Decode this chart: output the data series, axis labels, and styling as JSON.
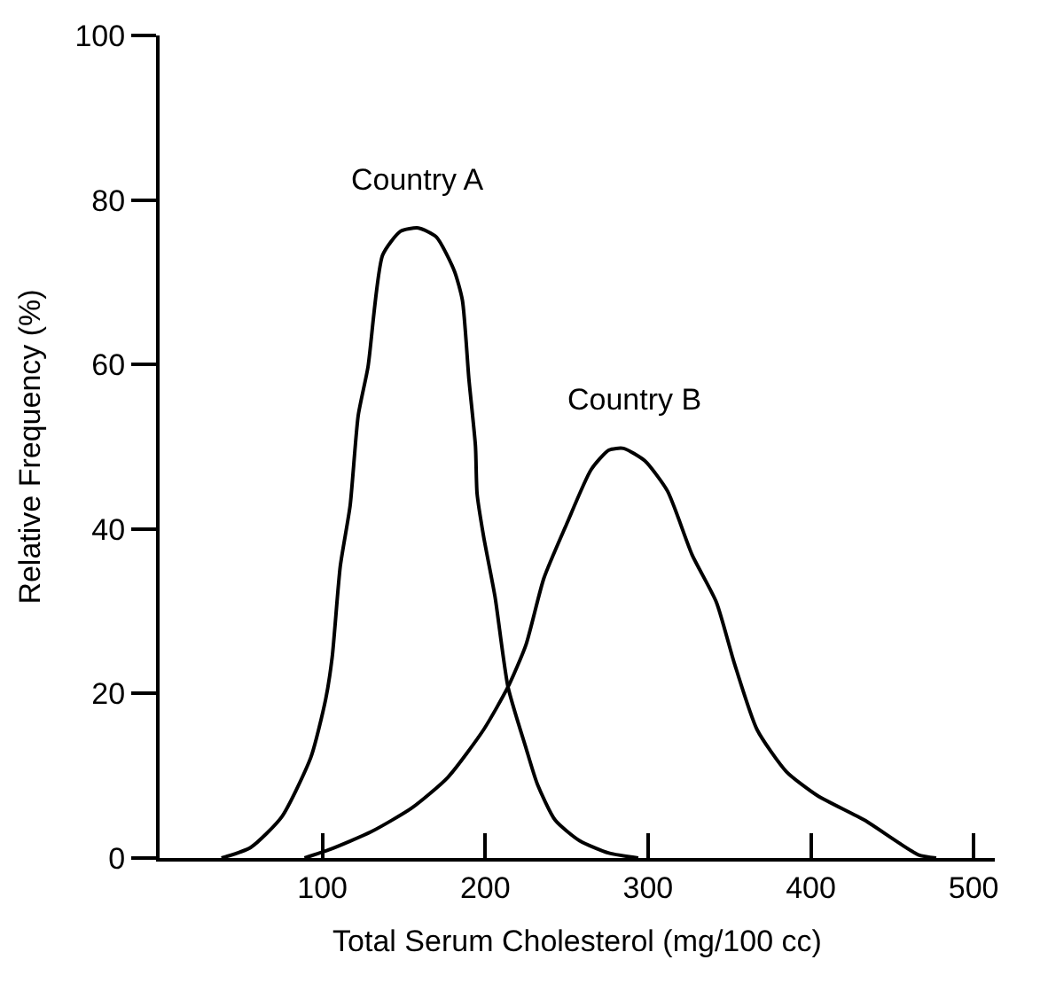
{
  "chart_data": {
    "type": "line",
    "xlabel": "Total Serum Cholesterol (mg/100 cc)",
    "ylabel": "Relative Frequency (%)",
    "xlim": [
      0,
      513
    ],
    "xticks": [
      100,
      200,
      300,
      400,
      500
    ],
    "ylim": [
      0,
      100
    ],
    "yticks": [
      0,
      20,
      40,
      60,
      80,
      100
    ],
    "marker": "none",
    "line_style": "solid",
    "series": [
      {
        "name": "Country A",
        "color": "#000000",
        "x": [
          38,
          56,
          75,
          93,
          102,
          106,
          111,
          117,
          122,
          128,
          137,
          148,
          159,
          170,
          181,
          186,
          190,
          194,
          195,
          199,
          206,
          214,
          225,
          232,
          243,
          258,
          276,
          294
        ],
        "values": [
          0,
          1.3,
          5,
          12.3,
          19.3,
          24.4,
          35.5,
          42.8,
          53.8,
          59.7,
          73.3,
          76.2,
          76.6,
          75.5,
          71.4,
          67.8,
          58.2,
          50.1,
          44.3,
          39.1,
          31.8,
          20.8,
          13.4,
          9,
          4.6,
          2.1,
          0.6,
          0
        ]
      },
      {
        "name": "Country B",
        "color": "#000000",
        "x": [
          89,
          104,
          130,
          155,
          177,
          199,
          214,
          225,
          236,
          250,
          265,
          276,
          285,
          298,
          312,
          327,
          342,
          353,
          367,
          385,
          404,
          433,
          466,
          477
        ],
        "values": [
          0,
          1,
          3.2,
          6.1,
          9.8,
          15.6,
          20.8,
          25.9,
          34,
          40.6,
          47.2,
          49.6,
          49.8,
          48.3,
          44.6,
          36.9,
          31.1,
          23.7,
          15.6,
          10.5,
          7.6,
          4.6,
          0.4,
          0
        ]
      }
    ]
  }
}
